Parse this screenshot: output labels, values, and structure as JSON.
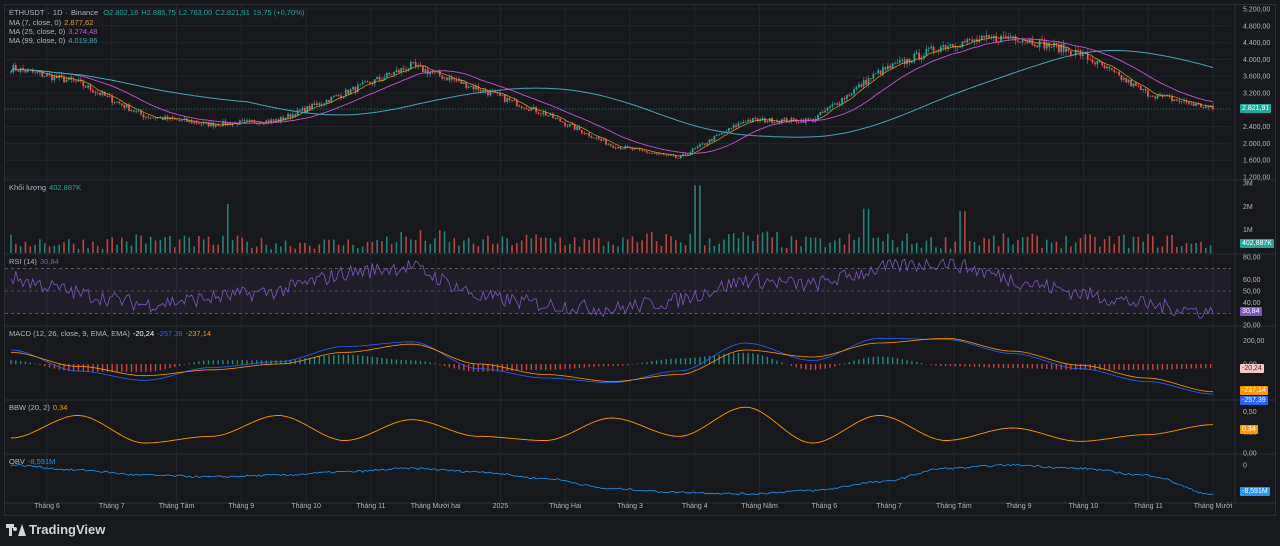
{
  "symbol": {
    "name": "ETHUSDT",
    "interval": "1D",
    "exchange": "Binance",
    "open": "O2.802,16",
    "high": "H2.885,75",
    "low": "L2.763,00",
    "close": "C2.821,91",
    "change": "19,75 (+0,70%)"
  },
  "legends": {
    "ma7_label": "MA (7, close, 0)",
    "ma7_value": "2.877,62",
    "ma25_label": "MA (25, close, 0)",
    "ma25_value": "3.274,48",
    "ma99_label": "MA (99, close, 0)",
    "ma99_value": "4.019,86",
    "volume_label": "Khối lượng",
    "volume_value": "402,887K",
    "rsi_label": "RSI (14)",
    "rsi_value": "30,84",
    "macd_label": "MACD (12, 26, close, 9, EMA, EMA)",
    "macd_value1": "-20,24",
    "macd_value2": "-257,39",
    "macd_value3": "-237,14",
    "bbw_label": "BBW (20, 2)",
    "bbw_value": "0,34",
    "obv_label": "OBV",
    "obv_value": "-8,591M"
  },
  "price_tags": {
    "last_price": "2.821,91",
    "volume": "402,887K",
    "rsi": "30,84",
    "macd_hist": "-20,24",
    "macd_signal": "-237,14",
    "macd_line": "-257,39",
    "bbw": "0,34",
    "obv": "-8,591M"
  },
  "colors": {
    "background": "#17181c",
    "up": "#26a69a",
    "down": "#ef5350",
    "ma7": "#e0a030",
    "ma25": "#c453d4",
    "ma99": "#4aa3b8",
    "rsi": "#7e57c2",
    "macd_line": "#2962ff",
    "macd_signal": "#ff9800",
    "bbw": "#ff9800",
    "obv": "#2196f3",
    "last_price_tag": "#26a69a"
  },
  "x_axis": {
    "labels": [
      "Tháng 6",
      "Tháng 7",
      "Tháng Tám",
      "Tháng 9",
      "Tháng 10",
      "Tháng 11",
      "Tháng Mười hai",
      "2025",
      "Tháng Hai",
      "Tháng 3",
      "Tháng 4",
      "Tháng Năm",
      "Tháng 6",
      "Tháng 7",
      "Tháng Tám",
      "Tháng 9",
      "Tháng 10",
      "Tháng 11",
      "Tháng Mười"
    ]
  },
  "chart_data": [
    {
      "type": "candlestick",
      "title": "ETHUSDT · 1D · Binance",
      "y_ticks": [
        "5.200,00",
        "4.800,00",
        "4.400,00",
        "4.000,00",
        "3.600,00",
        "3.200,00",
        "2.800,00",
        "2.400,00",
        "2.000,00",
        "1.600,00",
        "1.200,00"
      ],
      "ylim": [
        1200,
        5200
      ],
      "x": [
        "Tháng 6",
        "Tháng 7",
        "Tháng Tám",
        "Tháng 9",
        "Tháng 10",
        "Tháng 11",
        "Tháng Mười hai",
        "2025",
        "Tháng Hai",
        "Tháng 3",
        "Tháng 4",
        "Tháng Năm",
        "Tháng 6",
        "Tháng 7",
        "Tháng Tám",
        "Tháng 9",
        "Tháng 10",
        "Tháng 11",
        "Tháng Mười"
      ],
      "close": [
        3800,
        3450,
        2650,
        2450,
        2550,
        3200,
        3850,
        3300,
        2700,
        1950,
        1650,
        2550,
        2550,
        3700,
        4350,
        4550,
        4150,
        3200,
        2822
      ],
      "ma7_last": 2877.62,
      "ma25_last": 3274.48,
      "ma99_last": 4019.86,
      "last_price": 2821.91
    },
    {
      "type": "bar",
      "name": "Khối lượng",
      "y_ticks": [
        "3M",
        "2M",
        "1M"
      ],
      "ylim": [
        0,
        3000
      ],
      "values_k": [
        550,
        480,
        600,
        520,
        470,
        460,
        700,
        520,
        620,
        520,
        650,
        680,
        500,
        600,
        520,
        580,
        560,
        580,
        403
      ],
      "spikes_k": [
        2100,
        2900,
        1900,
        1800,
        1700
      ],
      "last": 402.887
    },
    {
      "type": "line",
      "name": "RSI (14)",
      "y_ticks": [
        "80,00",
        "60,00",
        "50,00",
        "40,00",
        "20,00"
      ],
      "ylim": [
        20,
        80
      ],
      "bands": [
        70,
        50,
        30
      ],
      "values": [
        62,
        48,
        38,
        44,
        50,
        66,
        72,
        45,
        38,
        34,
        42,
        60,
        55,
        70,
        76,
        60,
        48,
        38,
        30.84
      ]
    },
    {
      "type": "line",
      "name": "MACD (12, 26, close, 9, EMA, EMA)",
      "y_ticks": [
        "200,00",
        "0,00"
      ],
      "ylim": [
        -300,
        300
      ],
      "macd": [
        120,
        -60,
        -140,
        -30,
        20,
        150,
        190,
        -40,
        -120,
        -160,
        -60,
        180,
        30,
        220,
        210,
        90,
        -40,
        -150,
        -257.39
      ],
      "signal": [
        100,
        -20,
        -100,
        -50,
        0,
        100,
        170,
        0,
        -90,
        -150,
        -90,
        120,
        60,
        180,
        220,
        110,
        -10,
        -120,
        -237.14
      ],
      "histogram_last": -20.24
    },
    {
      "type": "line",
      "name": "BBW (20, 2)",
      "y_ticks": [
        "0,50",
        "0,25",
        "0,00"
      ],
      "ylim": [
        0,
        0.6
      ],
      "values": [
        0.18,
        0.45,
        0.12,
        0.2,
        0.45,
        0.15,
        0.4,
        0.2,
        0.15,
        0.42,
        0.2,
        0.55,
        0.12,
        0.45,
        0.15,
        0.3,
        0.14,
        0.22,
        0.34
      ]
    },
    {
      "type": "line",
      "name": "OBV",
      "y_ticks": [
        "0",
        "-5,000M"
      ],
      "values_m": [
        0,
        -1.5,
        -3,
        -3.5,
        -3,
        -2,
        -1,
        -2,
        -4,
        -7,
        -8,
        -8.5,
        -7.5,
        -5,
        -1,
        0,
        -1,
        -3,
        -8.591
      ]
    }
  ],
  "brand": "TradingView"
}
